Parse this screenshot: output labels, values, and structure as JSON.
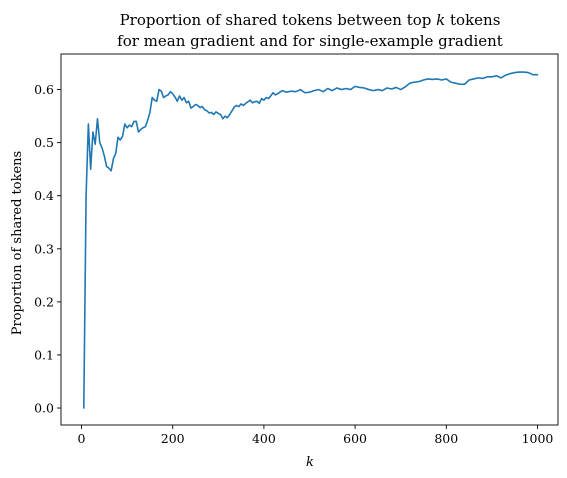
{
  "chart_data": {
    "type": "line",
    "title_line1_prefix": "Proportion of shared tokens between top ",
    "title_line1_var": "k",
    "title_line1_suffix": " tokens",
    "title_line2": "for mean gradient and for single-example gradient",
    "xlabel": "k",
    "ylabel": "Proportion of shared tokens",
    "xlim": [
      -45,
      1045
    ],
    "ylim": [
      -0.032,
      0.667
    ],
    "xticks": [
      0,
      200,
      400,
      600,
      800,
      1000
    ],
    "yticks": [
      0.0,
      0.1,
      0.2,
      0.3,
      0.4,
      0.5,
      0.6
    ],
    "ytick_labels": [
      "0.0",
      "0.1",
      "0.2",
      "0.3",
      "0.4",
      "0.5",
      "0.6"
    ],
    "grid": false,
    "series": [
      {
        "color": "#1f77b4",
        "x": [
          5,
          10,
          15,
          20,
          25,
          30,
          35,
          40,
          45,
          50,
          55,
          60,
          65,
          70,
          75,
          80,
          85,
          90,
          95,
          100,
          105,
          110,
          115,
          120,
          125,
          130,
          135,
          140,
          145,
          150,
          155,
          160,
          165,
          170,
          175,
          180,
          185,
          190,
          195,
          200,
          205,
          210,
          215,
          220,
          225,
          230,
          235,
          240,
          245,
          250,
          255,
          260,
          265,
          270,
          275,
          280,
          285,
          290,
          295,
          300,
          305,
          310,
          315,
          320,
          325,
          330,
          335,
          340,
          345,
          350,
          355,
          360,
          365,
          370,
          375,
          380,
          385,
          390,
          395,
          400,
          405,
          410,
          415,
          420,
          425,
          430,
          435,
          440,
          450,
          460,
          470,
          480,
          490,
          500,
          510,
          520,
          530,
          540,
          550,
          560,
          570,
          580,
          590,
          600,
          610,
          620,
          630,
          640,
          650,
          660,
          670,
          680,
          690,
          700,
          710,
          720,
          730,
          740,
          750,
          760,
          770,
          780,
          790,
          800,
          810,
          820,
          830,
          840,
          850,
          860,
          870,
          880,
          890,
          900,
          910,
          920,
          930,
          940,
          950,
          960,
          970,
          980,
          990,
          1000
        ],
        "y": [
          0.0,
          0.4,
          0.535,
          0.45,
          0.52,
          0.497,
          0.545,
          0.5,
          0.49,
          0.475,
          0.455,
          0.452,
          0.447,
          0.47,
          0.48,
          0.51,
          0.505,
          0.512,
          0.535,
          0.528,
          0.533,
          0.53,
          0.54,
          0.54,
          0.52,
          0.525,
          0.528,
          0.53,
          0.542,
          0.557,
          0.585,
          0.58,
          0.578,
          0.6,
          0.597,
          0.585,
          0.588,
          0.59,
          0.596,
          0.592,
          0.586,
          0.578,
          0.588,
          0.58,
          0.585,
          0.575,
          0.578,
          0.565,
          0.568,
          0.572,
          0.57,
          0.566,
          0.568,
          0.562,
          0.56,
          0.556,
          0.557,
          0.553,
          0.558,
          0.555,
          0.553,
          0.545,
          0.55,
          0.547,
          0.553,
          0.56,
          0.567,
          0.57,
          0.568,
          0.573,
          0.57,
          0.574,
          0.577,
          0.58,
          0.575,
          0.577,
          0.578,
          0.574,
          0.583,
          0.58,
          0.585,
          0.583,
          0.588,
          0.594,
          0.59,
          0.592,
          0.595,
          0.598,
          0.595,
          0.597,
          0.596,
          0.6,
          0.594,
          0.595,
          0.598,
          0.6,
          0.596,
          0.602,
          0.598,
          0.603,
          0.6,
          0.602,
          0.6,
          0.606,
          0.604,
          0.603,
          0.6,
          0.598,
          0.6,
          0.598,
          0.603,
          0.601,
          0.604,
          0.6,
          0.605,
          0.612,
          0.614,
          0.615,
          0.618,
          0.62,
          0.619,
          0.62,
          0.618,
          0.62,
          0.614,
          0.612,
          0.61,
          0.61,
          0.618,
          0.62,
          0.622,
          0.621,
          0.624,
          0.624,
          0.626,
          0.622,
          0.627,
          0.63,
          0.632,
          0.633,
          0.633,
          0.632,
          0.628,
          0.628
        ]
      }
    ]
  }
}
